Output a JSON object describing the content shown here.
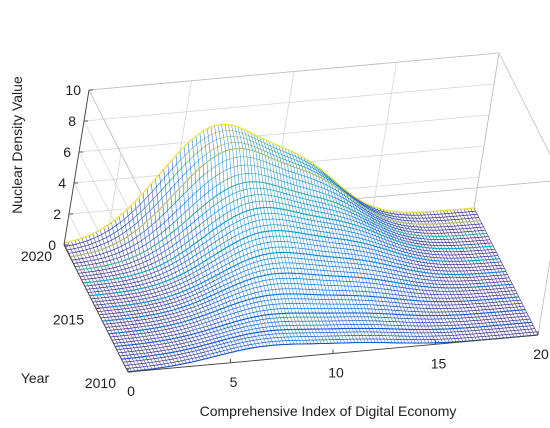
{
  "chart_data": {
    "type": "surface3d",
    "title": "",
    "xlabel": "Comprehensive Index of Digital Economy",
    "ylabel": "Year",
    "zlabel": "Nuclear Density Value",
    "xlim": [
      0,
      20
    ],
    "ylim": [
      2010,
      2020
    ],
    "zlim": [
      0,
      10
    ],
    "x_ticks": [
      "0",
      "5",
      "10",
      "15",
      "20"
    ],
    "y_ticks": [
      "2010",
      "2015",
      "2020"
    ],
    "z_ticks": [
      "0",
      "2",
      "4",
      "6",
      "8",
      "10"
    ],
    "grid": true,
    "colormap": "parula",
    "series": [
      {
        "year": 2010,
        "peak_x": 6.5,
        "peak_density": 0.9
      },
      {
        "year": 2011,
        "peak_x": 6.8,
        "peak_density": 1.0
      },
      {
        "year": 2012,
        "peak_x": 7.2,
        "peak_density": 1.2
      },
      {
        "year": 2013,
        "peak_x": 7.5,
        "peak_density": 1.6
      },
      {
        "year": 2014,
        "peak_x": 7.8,
        "peak_density": 2.1
      },
      {
        "year": 2015,
        "peak_x": 8.0,
        "peak_density": 2.6
      },
      {
        "year": 2016,
        "peak_x": 8.0,
        "peak_density": 3.2
      },
      {
        "year": 2017,
        "peak_x": 7.8,
        "peak_density": 3.9
      },
      {
        "year": 2018,
        "peak_x": 7.4,
        "peak_density": 4.8
      },
      {
        "year": 2019,
        "peak_x": 6.9,
        "peak_density": 6.2
      },
      {
        "year": 2020,
        "peak_x": 6.4,
        "peak_density": 7.0
      }
    ]
  }
}
